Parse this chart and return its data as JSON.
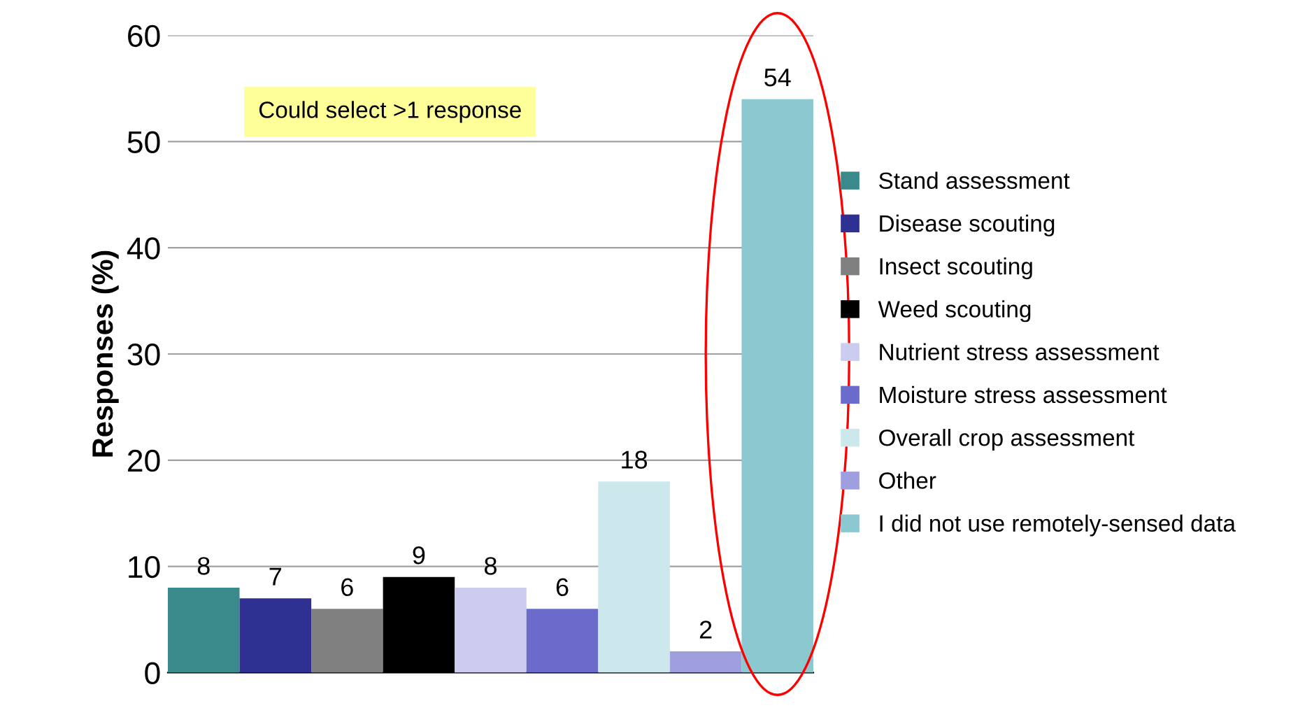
{
  "chart_data": {
    "type": "bar",
    "ylabel": "Responses (%)",
    "categories": [
      null,
      null,
      null,
      null,
      null,
      null,
      null,
      null,
      null
    ],
    "series": [
      {
        "name": "Stand assessment",
        "color": "#3a8a8c",
        "values": [
          8,
          null,
          null,
          null,
          null,
          null,
          null,
          null,
          null
        ]
      },
      {
        "name": "Disease scouting",
        "color": "#2e3192",
        "values": [
          null,
          7,
          null,
          null,
          null,
          null,
          null,
          null,
          null
        ]
      },
      {
        "name": "Insect scouting",
        "color": "#808080",
        "values": [
          null,
          null,
          6,
          null,
          null,
          null,
          null,
          null,
          null
        ]
      },
      {
        "name": "Weed scouting",
        "color": "#000000",
        "values": [
          null,
          null,
          null,
          9,
          null,
          null,
          null,
          null,
          null
        ]
      },
      {
        "name": "Nutrient stress assessment",
        "color": "#ccccee",
        "values": [
          null,
          null,
          null,
          null,
          8,
          null,
          null,
          null,
          null
        ]
      },
      {
        "name": "Moisture stress assessment",
        "color": "#6b6bcc",
        "values": [
          null,
          null,
          null,
          null,
          null,
          6,
          null,
          null,
          null
        ]
      },
      {
        "name": "Overall crop assessment",
        "color": "#cce8ec",
        "values": [
          null,
          null,
          null,
          null,
          null,
          null,
          18,
          null,
          null
        ]
      },
      {
        "name": "Other",
        "color": "#9f9fdf",
        "values": [
          null,
          null,
          null,
          null,
          null,
          null,
          null,
          2,
          null
        ]
      },
      {
        "name": "I did not use remotely-sensed data",
        "color": "#8cc8d0",
        "values": [
          null,
          null,
          null,
          null,
          null,
          null,
          null,
          null,
          54
        ]
      }
    ],
    "ylim": [
      0,
      60
    ],
    "yticks": [
      0,
      10,
      20,
      30,
      40,
      50,
      60
    ],
    "grid": "y",
    "legend": "right",
    "data_labels": true,
    "annotations": [
      "Could select >1 response"
    ]
  }
}
